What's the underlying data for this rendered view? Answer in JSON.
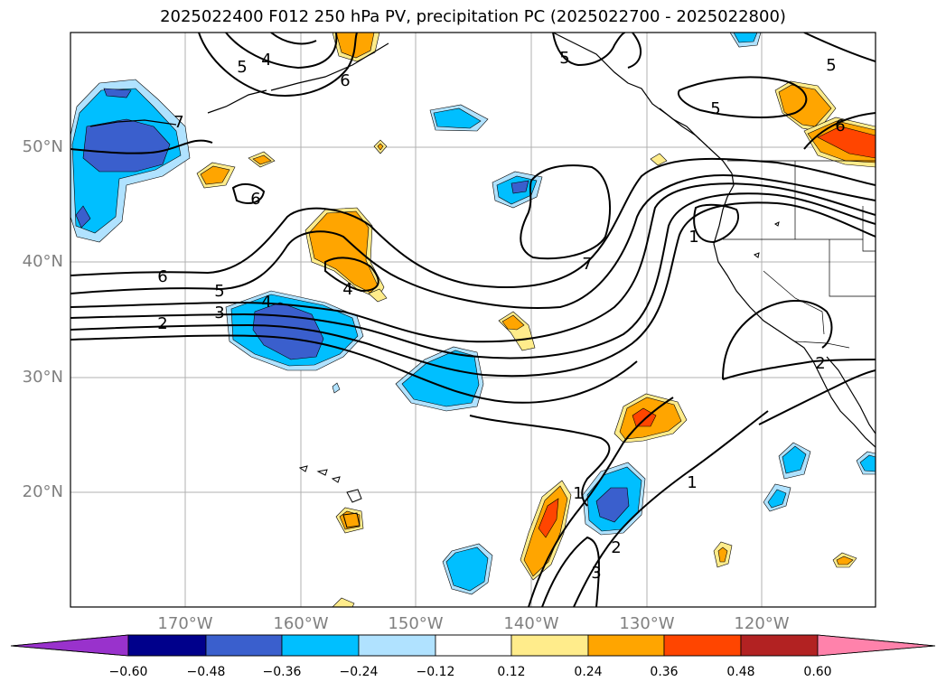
{
  "title": "2025022400 F012 250 hPa PV, precipitation PC (2025022700 - 2025022800)",
  "map": {
    "lon_range": [
      -180,
      -110.3
    ],
    "lat_range": [
      10,
      60
    ],
    "latitude_labels": [
      "20°N",
      "30°N",
      "40°N",
      "50°N"
    ],
    "longitude_labels": [
      "170°W",
      "160°W",
      "150°W",
      "140°W",
      "130°W",
      "120°W"
    ],
    "gridlines": true,
    "contour_labels": [
      "7",
      "6",
      "5",
      "4",
      "3",
      "2",
      "1"
    ],
    "contour_color": "#000000"
  },
  "colorbar": {
    "ticks": [
      "−0.60",
      "−0.48",
      "−0.36",
      "−0.24",
      "−0.12",
      "0.12",
      "0.24",
      "0.36",
      "0.48",
      "0.60"
    ],
    "colors": [
      "#9932cc",
      "#00008b",
      "#3a5fcd",
      "#00bfff",
      "#b0e2ff",
      "#ffffff",
      "#ffec8b",
      "#ffa500",
      "#ff4500",
      "#b22222",
      "#ff82ab"
    ],
    "extend": "both"
  }
}
